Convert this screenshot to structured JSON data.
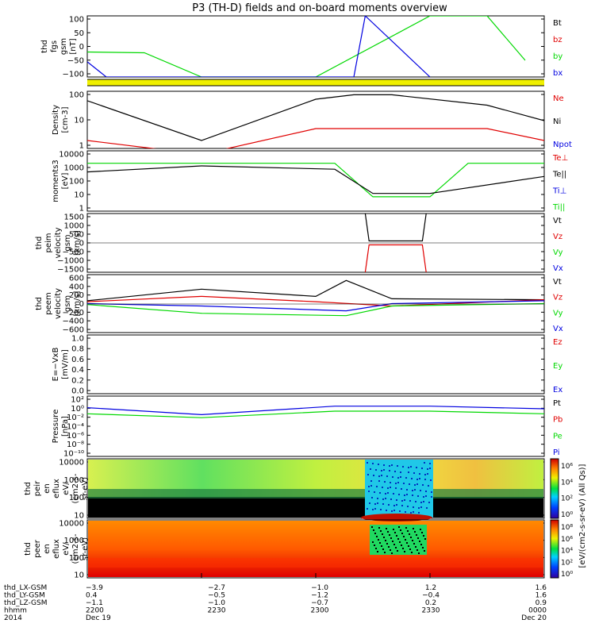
{
  "title": "P3 (TH-D) fields and on-board moments overview",
  "colors": {
    "black": "#000000",
    "red": "#e00000",
    "green": "#00d800",
    "blue": "#0000e0",
    "yellow": "#f0f000"
  },
  "panels": [
    {
      "id": "fgs",
      "ylabel_lines": [
        "thd",
        "fgs",
        "gsm",
        "[nT]"
      ],
      "ticks": [
        "100",
        "50",
        "0",
        "−50",
        "−100"
      ],
      "legend": [
        {
          "label": "Bt",
          "color": "#000000"
        },
        {
          "label": "bz",
          "color": "#e00000"
        },
        {
          "label": "by",
          "color": "#00d800"
        },
        {
          "label": "bx",
          "color": "#0000e0"
        }
      ]
    },
    {
      "id": "density",
      "ylabel_lines": [
        "Density",
        "[cm-3]"
      ],
      "ticks": [
        "100",
        "10",
        "1"
      ],
      "legend": [
        {
          "label": "Ne",
          "color": "#e00000"
        },
        {
          "label": "Ni",
          "color": "#000000"
        },
        {
          "label": "Npot",
          "color": "#0000e0"
        }
      ]
    },
    {
      "id": "temp",
      "ylabel_lines": [
        "moments3",
        "[eV]"
      ],
      "ticks": [
        "10000",
        "1000",
        "100",
        "10",
        "1"
      ],
      "legend": [
        {
          "label": "Te⊥",
          "color": "#e00000"
        },
        {
          "label": "Te||",
          "color": "#000000"
        },
        {
          "label": "Ti⊥",
          "color": "#0000e0"
        },
        {
          "label": "Ti||",
          "color": "#00d800"
        }
      ]
    },
    {
      "id": "peim",
      "ylabel_lines": [
        "thd",
        "peim",
        "velocity",
        "gsm",
        "[km/s]"
      ],
      "ticks": [
        "1500",
        "1000",
        "500",
        "0",
        "−500",
        "−1000",
        "−1500"
      ],
      "legend": [
        {
          "label": "Vt",
          "color": "#000000"
        },
        {
          "label": "Vz",
          "color": "#e00000"
        },
        {
          "label": "Vy",
          "color": "#00d800"
        },
        {
          "label": "Vx",
          "color": "#0000e0"
        }
      ]
    },
    {
      "id": "peem",
      "ylabel_lines": [
        "thd",
        "peem",
        "velocity",
        "gsm",
        "[km/s]"
      ],
      "ticks": [
        "600",
        "400",
        "200",
        "0",
        "−200",
        "−400",
        "−600"
      ],
      "legend": [
        {
          "label": "Vt",
          "color": "#000000"
        },
        {
          "label": "Vz",
          "color": "#e00000"
        },
        {
          "label": "Vy",
          "color": "#00d800"
        },
        {
          "label": "Vx",
          "color": "#0000e0"
        }
      ]
    },
    {
      "id": "efield",
      "ylabel_lines": [
        "E=−VxB",
        "[mV/m]"
      ],
      "ticks": [
        "1.0",
        "0.8",
        "0.6",
        "0.4",
        "0.2",
        "0.0"
      ],
      "legend": [
        {
          "label": "Ez",
          "color": "#e00000"
        },
        {
          "label": "Ey",
          "color": "#00d800"
        },
        {
          "label": "Ex",
          "color": "#0000e0"
        }
      ]
    },
    {
      "id": "pressure",
      "ylabel_lines": [
        "Pressure",
        "[nPa]"
      ],
      "ticks": [
        "10²",
        "10⁰",
        "10⁻²",
        "10⁻⁴",
        "10⁻⁶",
        "10⁻⁸",
        "10⁻¹⁰"
      ],
      "legend": [
        {
          "label": "Pt",
          "color": "#000000"
        },
        {
          "label": "Pb",
          "color": "#e00000"
        },
        {
          "label": "Pe",
          "color": "#00d800"
        },
        {
          "label": "Pi",
          "color": "#0000e0"
        }
      ]
    },
    {
      "id": "peir",
      "ylabel_lines": [
        "thd",
        "peir",
        "en",
        "eflux",
        "eV/",
        "(cm2-s-",
        "sr-eV)"
      ],
      "ticks": [
        "10000",
        "1000",
        "100",
        "10"
      ],
      "legend": []
    },
    {
      "id": "peer",
      "ylabel_lines": [
        "thd",
        "peer",
        "en",
        "eflux",
        "eV/",
        "(cm2-s-",
        "sr-eV)"
      ],
      "ticks": [
        "10000",
        "1000",
        "100",
        "10"
      ],
      "legend": []
    }
  ],
  "colorbars": [
    {
      "ticks": [
        "10⁶",
        "10⁴",
        "10²",
        "10⁰"
      ]
    },
    {
      "ticks": [
        "10⁸",
        "10⁶",
        "10⁴",
        "10²",
        "10⁰"
      ]
    }
  ],
  "colorbar_label": "[eV/(cm2-s-sr-eV) (All Qs)]",
  "x_axis": {
    "rows": [
      {
        "label": "thd_LX-GSM",
        "values": [
          "−3.9",
          "−2.7",
          "−1.0",
          "1.2",
          "1.6"
        ]
      },
      {
        "label": "thd_LY-GSM",
        "values": [
          "0.4",
          "−0.5",
          "−1.2",
          "−0.4",
          "1.6"
        ]
      },
      {
        "label": "thd_LZ-GSM",
        "values": [
          "−1.1",
          "−1.0",
          "−0.7",
          "0.2",
          "0.9"
        ]
      },
      {
        "label": "hhmm",
        "values": [
          "2200",
          "2230",
          "2300",
          "2330",
          "0000"
        ]
      },
      {
        "label": "2014",
        "values": [
          "Dec 19",
          "",
          "",
          "",
          "Dec 20"
        ]
      }
    ]
  },
  "chart_data": {
    "type": "line",
    "title": "P3 (TH-D) fields and on-board moments overview",
    "x_hhmm": [
      "2200",
      "2230",
      "2300",
      "2330",
      "0000"
    ],
    "x_range": [
      "2014-12-19 22:00",
      "2014-12-20 00:00"
    ],
    "panels": [
      {
        "name": "fgs",
        "ylim": [
          -120,
          100
        ],
        "series": [
          {
            "name": "by",
            "x": [
              "22:00",
              "22:15",
              "22:30",
              "23:00",
              "23:30",
              "23:45",
              "23:55"
            ],
            "values": [
              -30,
              -33,
              -120,
              -120,
              100,
              100,
              -60
            ]
          },
          {
            "name": "bx",
            "x": [
              "22:00",
              "22:05",
              "23:00",
              "23:10",
              "23:13",
              "23:30"
            ],
            "values": [
              -65,
              -120,
              -120,
              -120,
              100,
              -120
            ]
          }
        ]
      },
      {
        "name": "density",
        "scale": "log",
        "ylim": [
          0.4,
          300
        ],
        "series": [
          {
            "name": "Ni",
            "x": [
              "22:00",
              "22:30",
              "23:00",
              "23:10",
              "23:20",
              "23:45",
              "24:00"
            ],
            "values": [
              100,
              1,
              120,
              200,
              200,
              60,
              10
            ]
          },
          {
            "name": "Ne",
            "x": [
              "22:00",
              "22:30",
              "23:00",
              "23:15",
              "23:45",
              "24:00"
            ],
            "values": [
              1,
              0.2,
              4,
              4,
              4,
              1
            ]
          }
        ]
      },
      {
        "name": "temp",
        "scale": "log",
        "ylim": [
          1,
          10000
        ],
        "series": [
          {
            "name": "Ti||",
            "x": [
              "22:00",
              "22:30",
              "23:05",
              "23:15",
              "23:30",
              "23:40",
              "24:00"
            ],
            "values": [
              1500,
              1500,
              1500,
              9,
              9,
              1500,
              1500
            ]
          },
          {
            "name": "Te||",
            "x": [
              "22:00",
              "22:30",
              "23:05",
              "23:15",
              "23:30",
              "24:00"
            ],
            "values": [
              400,
              1000,
              600,
              15,
              15,
              200
            ]
          }
        ]
      },
      {
        "name": "peim",
        "ylim": [
          -1500,
          1500
        ],
        "series": [
          {
            "name": "Vt",
            "x": [
              "23:13",
              "23:14",
              "23:28",
              "23:29"
            ],
            "values": [
              1500,
              100,
              100,
              1500
            ]
          },
          {
            "name": "Vz",
            "x": [
              "23:13",
              "23:14",
              "23:28",
              "23:29"
            ],
            "values": [
              -1500,
              -100,
              -100,
              -1500
            ]
          }
        ]
      },
      {
        "name": "peem",
        "ylim": [
          -600,
          600
        ],
        "series": [
          {
            "name": "Vt",
            "x": [
              "22:00",
              "22:30",
              "23:00",
              "23:08",
              "23:20",
              "24:00"
            ],
            "values": [
              60,
              300,
              150,
              480,
              100,
              80
            ]
          },
          {
            "name": "Vz",
            "x": [
              "22:00",
              "22:30",
              "23:00",
              "23:20",
              "24:00"
            ],
            "values": [
              40,
              150,
              40,
              -50,
              80
            ]
          },
          {
            "name": "Vy",
            "x": [
              "22:00",
              "22:30",
              "23:08",
              "23:20",
              "24:00"
            ],
            "values": [
              -20,
              -200,
              -250,
              -50,
              0
            ]
          },
          {
            "name": "Vx",
            "x": [
              "22:00",
              "22:30",
              "23:08",
              "23:20",
              "24:00"
            ],
            "values": [
              0,
              -50,
              -150,
              0,
              60
            ]
          }
        ]
      },
      {
        "name": "efield",
        "ylim": [
          0,
          1
        ],
        "series": []
      },
      {
        "name": "pressure",
        "scale": "log",
        "ylim": [
          1e-10,
          100
        ],
        "series": [
          {
            "name": "Pi",
            "x": [
              "22:00",
              "22:30",
              "23:05",
              "23:30",
              "24:00"
            ],
            "values": [
              0.5,
              0.02,
              1,
              1,
              0.3
            ]
          },
          {
            "name": "Pe",
            "x": [
              "22:00",
              "22:30",
              "23:05",
              "23:30",
              "24:00"
            ],
            "values": [
              0.03,
              0.005,
              0.1,
              0.1,
              0.03
            ]
          }
        ]
      }
    ]
  }
}
